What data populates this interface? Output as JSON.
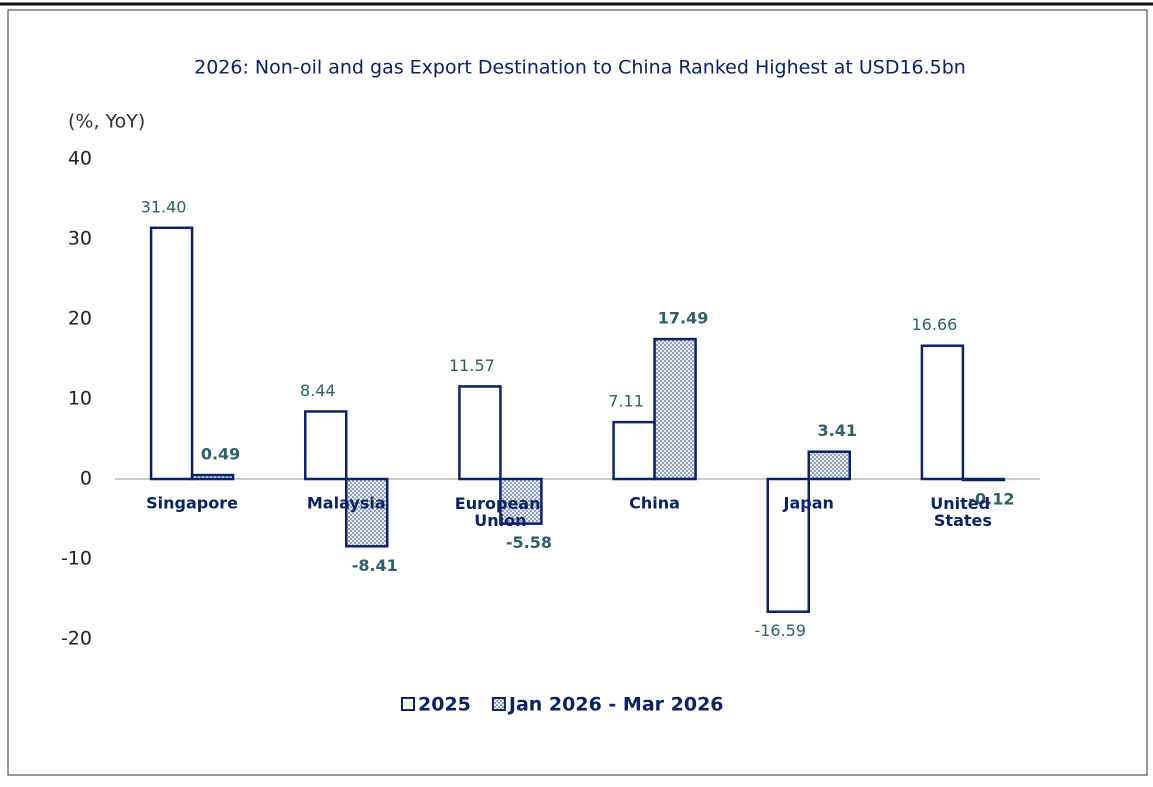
{
  "chart_data": {
    "type": "bar",
    "title": "2026: Non-oil and gas Export Destination to China Ranked Highest at USD16.5bn",
    "y_axis_label": "(%, YoY)",
    "categories": [
      "Singapore",
      "Malaysia",
      "European Union",
      "China",
      "Japan",
      "United States"
    ],
    "series": [
      {
        "name": "2025",
        "color": "#0b2265",
        "values": [
          31.4,
          8.44,
          11.57,
          7.11,
          -16.59,
          16.66
        ],
        "value_labels": [
          "31.40",
          "8.44",
          "11.57",
          "7.11",
          "-16.59",
          "16.66"
        ]
      },
      {
        "name": "Jan 2026 - Mar 2026",
        "color": "#0b2265",
        "values": [
          0.49,
          -8.41,
          -5.58,
          17.49,
          3.41,
          -0.12
        ],
        "value_labels": [
          "0.49",
          "-8.41",
          "-5.58",
          "17.49",
          "3.41",
          "-0.12"
        ]
      }
    ],
    "ylim": [
      -20,
      40
    ],
    "yticks": [
      -20,
      -10,
      0,
      10,
      20,
      30,
      40
    ],
    "grid": false,
    "legend": "bottom"
  }
}
